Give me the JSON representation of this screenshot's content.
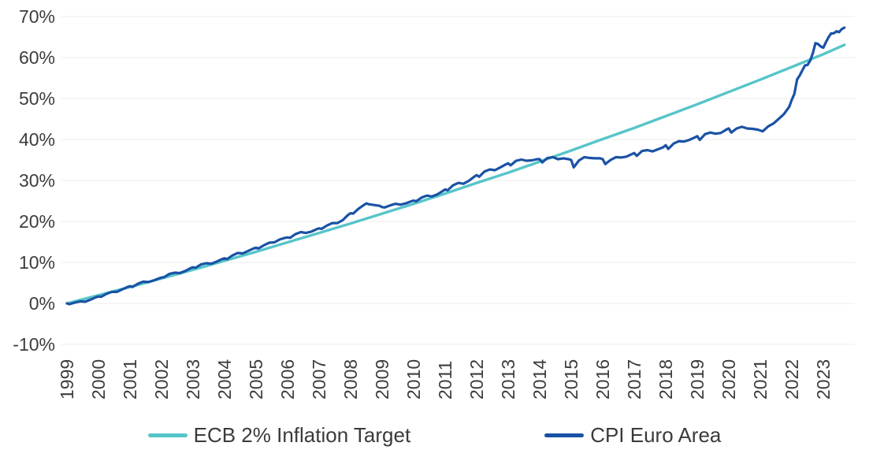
{
  "colors": {
    "background": "#ffffff",
    "text": "#3d3d3d",
    "grid": "#ededed",
    "target_line": "#56c5c9",
    "cpi_line": "#1a52a5"
  },
  "chart_data": {
    "type": "line",
    "title": "",
    "xlabel": "",
    "ylabel": "",
    "unit": "%",
    "x_range": [
      1999,
      2024
    ],
    "ylim": [
      -10,
      70
    ],
    "grid": "horizontal",
    "legend_position": "bottom",
    "y_ticks": [
      {
        "value": 70,
        "label": "70%"
      },
      {
        "value": 60,
        "label": "60%"
      },
      {
        "value": 50,
        "label": "50%"
      },
      {
        "value": 40,
        "label": "40%"
      },
      {
        "value": 30,
        "label": "30%"
      },
      {
        "value": 20,
        "label": "20%"
      },
      {
        "value": 10,
        "label": "10%"
      },
      {
        "value": 0,
        "label": "0%"
      },
      {
        "value": -10,
        "label": "-10%"
      }
    ],
    "x_ticks": [
      {
        "value": 1999,
        "label": "1999"
      },
      {
        "value": 2000,
        "label": "2000"
      },
      {
        "value": 2001,
        "label": "2001"
      },
      {
        "value": 2002,
        "label": "2002"
      },
      {
        "value": 2003,
        "label": "2003"
      },
      {
        "value": 2004,
        "label": "2004"
      },
      {
        "value": 2005,
        "label": "2005"
      },
      {
        "value": 2006,
        "label": "2006"
      },
      {
        "value": 2007,
        "label": "2007"
      },
      {
        "value": 2008,
        "label": "2008"
      },
      {
        "value": 2009,
        "label": "2009"
      },
      {
        "value": 2010,
        "label": "2010"
      },
      {
        "value": 2011,
        "label": "2011"
      },
      {
        "value": 2012,
        "label": "2012"
      },
      {
        "value": 2013,
        "label": "2013"
      },
      {
        "value": 2014,
        "label": "2014"
      },
      {
        "value": 2015,
        "label": "2015"
      },
      {
        "value": 2016,
        "label": "2016"
      },
      {
        "value": 2017,
        "label": "2017"
      },
      {
        "value": 2018,
        "label": "2018"
      },
      {
        "value": 2019,
        "label": "2019"
      },
      {
        "value": 2020,
        "label": "2020"
      },
      {
        "value": 2021,
        "label": "2021"
      },
      {
        "value": 2022,
        "label": "2022"
      },
      {
        "value": 2023,
        "label": "2023"
      }
    ],
    "series": [
      {
        "name": "ECB 2% Inflation Target",
        "color": "#56c5c9",
        "width": 3.4,
        "points": [
          [
            1999.0,
            0.0
          ],
          [
            2000.0,
            2.0
          ],
          [
            2001.0,
            4.0
          ],
          [
            2002.0,
            6.1
          ],
          [
            2003.0,
            8.2
          ],
          [
            2004.0,
            10.4
          ],
          [
            2005.0,
            12.6
          ],
          [
            2006.0,
            14.9
          ],
          [
            2007.0,
            17.2
          ],
          [
            2008.0,
            19.5
          ],
          [
            2009.0,
            21.9
          ],
          [
            2010.0,
            24.3
          ],
          [
            2011.0,
            26.8
          ],
          [
            2012.0,
            29.4
          ],
          [
            2013.0,
            31.9
          ],
          [
            2014.0,
            34.6
          ],
          [
            2015.0,
            37.3
          ],
          [
            2016.0,
            40.1
          ],
          [
            2017.0,
            42.8
          ],
          [
            2018.0,
            45.7
          ],
          [
            2019.0,
            48.6
          ],
          [
            2020.0,
            51.6
          ],
          [
            2021.0,
            54.6
          ],
          [
            2022.0,
            57.7
          ],
          [
            2023.0,
            60.8
          ],
          [
            2023.67,
            63.1
          ]
        ]
      },
      {
        "name": "CPI Euro Area",
        "color": "#1a52a5",
        "width": 3.2,
        "points": [
          [
            1999.0,
            0.0
          ],
          [
            1999.08,
            -0.2
          ],
          [
            1999.25,
            0.2
          ],
          [
            1999.42,
            0.5
          ],
          [
            1999.58,
            0.4
          ],
          [
            1999.75,
            0.9
          ],
          [
            1999.92,
            1.5
          ],
          [
            2000.0,
            1.7
          ],
          [
            2000.08,
            1.6
          ],
          [
            2000.25,
            2.3
          ],
          [
            2000.42,
            2.8
          ],
          [
            2000.58,
            2.8
          ],
          [
            2000.75,
            3.4
          ],
          [
            2000.92,
            4.0
          ],
          [
            2001.0,
            4.2
          ],
          [
            2001.08,
            4.0
          ],
          [
            2001.25,
            4.8
          ],
          [
            2001.42,
            5.3
          ],
          [
            2001.58,
            5.2
          ],
          [
            2001.75,
            5.6
          ],
          [
            2001.92,
            6.1
          ],
          [
            2002.0,
            6.3
          ],
          [
            2002.08,
            6.4
          ],
          [
            2002.25,
            7.2
          ],
          [
            2002.42,
            7.5
          ],
          [
            2002.58,
            7.4
          ],
          [
            2002.75,
            7.9
          ],
          [
            2002.92,
            8.6
          ],
          [
            2003.0,
            8.8
          ],
          [
            2003.08,
            8.7
          ],
          [
            2003.25,
            9.5
          ],
          [
            2003.42,
            9.8
          ],
          [
            2003.58,
            9.7
          ],
          [
            2003.75,
            10.2
          ],
          [
            2003.92,
            10.8
          ],
          [
            2004.0,
            11.0
          ],
          [
            2004.08,
            10.8
          ],
          [
            2004.25,
            11.7
          ],
          [
            2004.42,
            12.3
          ],
          [
            2004.58,
            12.2
          ],
          [
            2004.75,
            12.8
          ],
          [
            2004.92,
            13.4
          ],
          [
            2005.0,
            13.6
          ],
          [
            2005.08,
            13.4
          ],
          [
            2005.25,
            14.2
          ],
          [
            2005.42,
            14.8
          ],
          [
            2005.58,
            14.9
          ],
          [
            2005.75,
            15.6
          ],
          [
            2005.92,
            16.0
          ],
          [
            2006.0,
            16.1
          ],
          [
            2006.08,
            16.0
          ],
          [
            2006.25,
            16.9
          ],
          [
            2006.42,
            17.4
          ],
          [
            2006.58,
            17.2
          ],
          [
            2006.75,
            17.5
          ],
          [
            2006.92,
            18.1
          ],
          [
            2007.0,
            18.3
          ],
          [
            2007.08,
            18.2
          ],
          [
            2007.25,
            19.0
          ],
          [
            2007.42,
            19.6
          ],
          [
            2007.58,
            19.6
          ],
          [
            2007.75,
            20.3
          ],
          [
            2007.92,
            21.6
          ],
          [
            2008.0,
            22.0
          ],
          [
            2008.08,
            21.9
          ],
          [
            2008.25,
            23.1
          ],
          [
            2008.42,
            24.0
          ],
          [
            2008.5,
            24.4
          ],
          [
            2008.58,
            24.2
          ],
          [
            2008.75,
            24.0
          ],
          [
            2008.92,
            23.8
          ],
          [
            2009.0,
            23.5
          ],
          [
            2009.08,
            23.4
          ],
          [
            2009.25,
            23.9
          ],
          [
            2009.42,
            24.3
          ],
          [
            2009.58,
            24.1
          ],
          [
            2009.75,
            24.4
          ],
          [
            2009.92,
            24.9
          ],
          [
            2010.0,
            25.1
          ],
          [
            2010.08,
            24.9
          ],
          [
            2010.25,
            25.8
          ],
          [
            2010.42,
            26.3
          ],
          [
            2010.58,
            26.1
          ],
          [
            2010.75,
            26.6
          ],
          [
            2010.92,
            27.4
          ],
          [
            2011.0,
            27.8
          ],
          [
            2011.08,
            27.6
          ],
          [
            2011.25,
            28.8
          ],
          [
            2011.42,
            29.4
          ],
          [
            2011.58,
            29.2
          ],
          [
            2011.75,
            29.9
          ],
          [
            2011.92,
            30.9
          ],
          [
            2012.0,
            31.3
          ],
          [
            2012.08,
            30.9
          ],
          [
            2012.25,
            32.2
          ],
          [
            2012.42,
            32.7
          ],
          [
            2012.58,
            32.5
          ],
          [
            2012.75,
            33.2
          ],
          [
            2012.92,
            33.9
          ],
          [
            2013.0,
            34.2
          ],
          [
            2013.08,
            33.7
          ],
          [
            2013.25,
            34.8
          ],
          [
            2013.42,
            35.1
          ],
          [
            2013.58,
            34.8
          ],
          [
            2013.75,
            34.9
          ],
          [
            2013.92,
            35.2
          ],
          [
            2014.0,
            35.2
          ],
          [
            2014.08,
            34.4
          ],
          [
            2014.25,
            35.5
          ],
          [
            2014.42,
            35.7
          ],
          [
            2014.58,
            35.2
          ],
          [
            2014.75,
            35.4
          ],
          [
            2014.92,
            35.2
          ],
          [
            2015.0,
            35.0
          ],
          [
            2015.08,
            33.2
          ],
          [
            2015.25,
            34.9
          ],
          [
            2015.42,
            35.7
          ],
          [
            2015.58,
            35.5
          ],
          [
            2015.75,
            35.4
          ],
          [
            2015.92,
            35.4
          ],
          [
            2016.0,
            35.2
          ],
          [
            2016.08,
            34.0
          ],
          [
            2016.25,
            35.0
          ],
          [
            2016.42,
            35.7
          ],
          [
            2016.58,
            35.6
          ],
          [
            2016.75,
            35.8
          ],
          [
            2016.92,
            36.4
          ],
          [
            2017.0,
            36.7
          ],
          [
            2017.08,
            36.0
          ],
          [
            2017.25,
            37.2
          ],
          [
            2017.42,
            37.4
          ],
          [
            2017.58,
            37.1
          ],
          [
            2017.75,
            37.6
          ],
          [
            2017.92,
            38.1
          ],
          [
            2018.0,
            38.6
          ],
          [
            2018.08,
            37.7
          ],
          [
            2018.25,
            39.0
          ],
          [
            2018.42,
            39.6
          ],
          [
            2018.58,
            39.5
          ],
          [
            2018.75,
            39.9
          ],
          [
            2018.92,
            40.5
          ],
          [
            2019.0,
            40.8
          ],
          [
            2019.08,
            39.9
          ],
          [
            2019.25,
            41.3
          ],
          [
            2019.42,
            41.7
          ],
          [
            2019.58,
            41.4
          ],
          [
            2019.75,
            41.6
          ],
          [
            2019.92,
            42.4
          ],
          [
            2020.0,
            42.7
          ],
          [
            2020.08,
            41.7
          ],
          [
            2020.25,
            42.7
          ],
          [
            2020.42,
            43.1
          ],
          [
            2020.58,
            42.7
          ],
          [
            2020.75,
            42.6
          ],
          [
            2020.92,
            42.4
          ],
          [
            2021.0,
            42.2
          ],
          [
            2021.08,
            42.0
          ],
          [
            2021.25,
            43.2
          ],
          [
            2021.42,
            43.9
          ],
          [
            2021.58,
            45.0
          ],
          [
            2021.75,
            46.2
          ],
          [
            2021.92,
            48.0
          ],
          [
            2022.0,
            49.7
          ],
          [
            2022.08,
            51.1
          ],
          [
            2022.17,
            54.7
          ],
          [
            2022.25,
            55.6
          ],
          [
            2022.33,
            56.8
          ],
          [
            2022.42,
            58.1
          ],
          [
            2022.5,
            58.2
          ],
          [
            2022.58,
            59.2
          ],
          [
            2022.67,
            61.1
          ],
          [
            2022.75,
            63.5
          ],
          [
            2022.83,
            63.3
          ],
          [
            2022.92,
            62.7
          ],
          [
            2023.0,
            62.4
          ],
          [
            2023.08,
            63.7
          ],
          [
            2023.17,
            65.0
          ],
          [
            2023.25,
            65.9
          ],
          [
            2023.33,
            65.9
          ],
          [
            2023.42,
            66.4
          ],
          [
            2023.5,
            66.2
          ],
          [
            2023.58,
            66.9
          ],
          [
            2023.67,
            67.3
          ]
        ]
      }
    ]
  }
}
